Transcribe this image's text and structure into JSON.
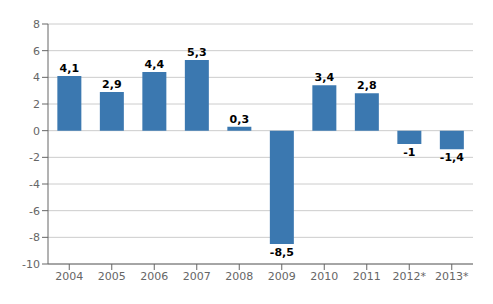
{
  "chart_data": {
    "type": "bar",
    "categories": [
      "2004",
      "2005",
      "2006",
      "2007",
      "2008",
      "2009",
      "2010",
      "2011",
      "2012*",
      "2013*"
    ],
    "values": [
      4.1,
      2.9,
      4.4,
      5.3,
      0.3,
      -8.5,
      3.4,
      2.8,
      -1.0,
      -1.4
    ],
    "value_labels": [
      "4,1",
      "2,9",
      "4,4",
      "5,3",
      "0,3",
      "-8,5",
      "3,4",
      "2,8",
      "-1",
      "-1,4"
    ],
    "data_labels": true,
    "color": "#3B78B0",
    "ylim": [
      -10,
      8
    ],
    "yticks": [
      -10,
      -8,
      -6,
      -4,
      -2,
      0,
      2,
      4,
      6,
      8
    ],
    "grid": true
  }
}
